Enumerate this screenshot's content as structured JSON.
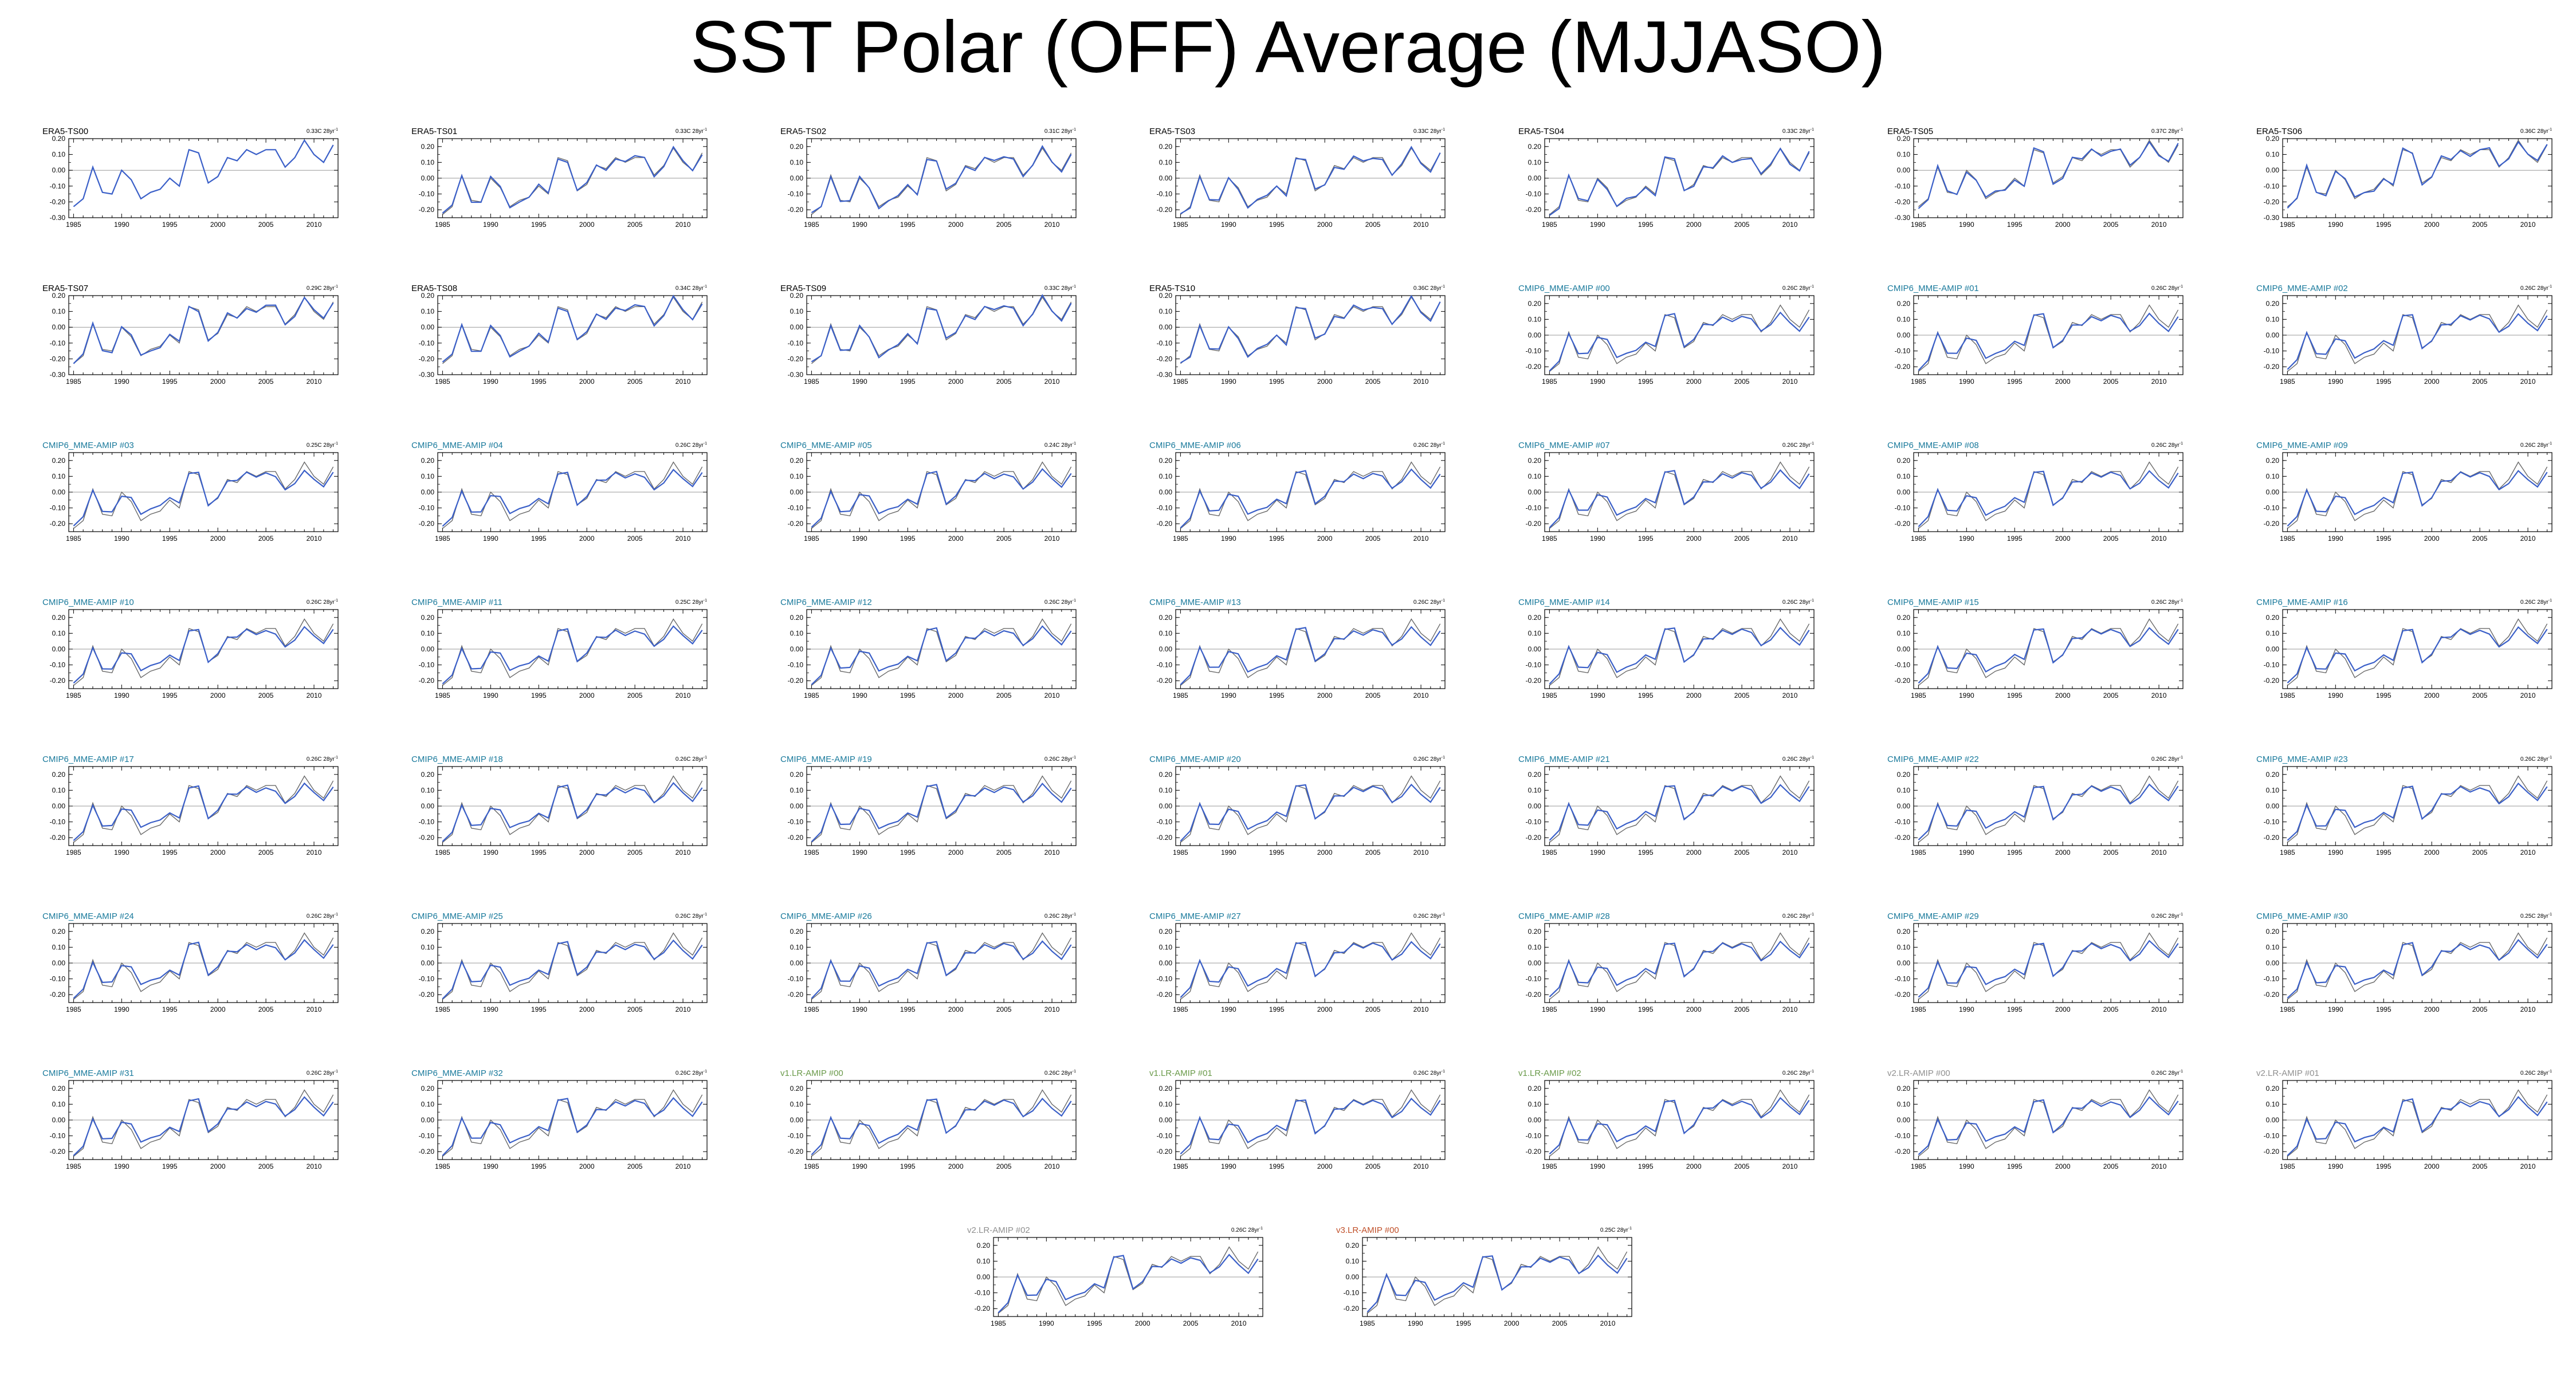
{
  "title": "SST Polar (OFF) Average (MJJASO)",
  "colors": {
    "ts": "#000000",
    "cmip": "#1a7a9c",
    "v1": "#6a9a4a",
    "v2": "#909090",
    "v3": "#c0502a",
    "main_line": "#3a5fc8",
    "ref_line": "#6a6a6a"
  },
  "chart_data": {
    "type": "line",
    "x": [
      1985,
      1986,
      1987,
      1988,
      1989,
      1990,
      1991,
      1992,
      1993,
      1994,
      1995,
      1996,
      1997,
      1998,
      1999,
      2000,
      2001,
      2002,
      2003,
      2004,
      2005,
      2006,
      2007,
      2008,
      2009,
      2010,
      2011,
      2012
    ],
    "xticks": [
      1985,
      1990,
      1995,
      2000,
      2005,
      2010
    ],
    "reference_series": {
      "name": "ERA5-TS00",
      "values": [
        -0.23,
        -0.18,
        0.02,
        -0.14,
        -0.15,
        0.0,
        -0.06,
        -0.18,
        -0.14,
        -0.12,
        -0.05,
        -0.1,
        0.13,
        0.11,
        -0.08,
        -0.04,
        0.08,
        0.06,
        0.13,
        0.1,
        0.13,
        0.13,
        0.02,
        0.08,
        0.19,
        0.1,
        0.05,
        0.16
      ]
    },
    "cmip_series_values": [
      -0.22,
      -0.16,
      0.01,
      -0.12,
      -0.12,
      -0.02,
      -0.03,
      -0.14,
      -0.11,
      -0.09,
      -0.04,
      -0.07,
      0.12,
      0.13,
      -0.08,
      -0.03,
      0.07,
      0.07,
      0.12,
      0.09,
      0.12,
      0.1,
      0.02,
      0.06,
      0.14,
      0.08,
      0.03,
      0.12
    ],
    "panels": [
      {
        "name": "ERA5-TS00",
        "trend": "0.33C 28yr",
        "group": "ts",
        "ylim": [
          -0.3,
          0.2
        ],
        "yticks": [
          "0.20",
          "0.10",
          "0.00",
          "-0.10",
          "-0.20",
          "-0.30"
        ]
      },
      {
        "name": "ERA5-TS01",
        "trend": "0.33C 28yr",
        "group": "ts",
        "ylim": [
          -0.25,
          0.25
        ],
        "yticks": [
          "0.20",
          "0.10",
          "0.00",
          "-0.10",
          "-0.20"
        ]
      },
      {
        "name": "ERA5-TS02",
        "trend": "0.31C 28yr",
        "group": "ts",
        "ylim": [
          -0.25,
          0.25
        ],
        "yticks": [
          "0.20",
          "0.10",
          "0.00",
          "-0.10",
          "-0.20"
        ]
      },
      {
        "name": "ERA5-TS03",
        "trend": "0.33C 28yr",
        "group": "ts",
        "ylim": [
          -0.25,
          0.25
        ],
        "yticks": [
          "0.20",
          "0.10",
          "0.00",
          "-0.10",
          "-0.20"
        ]
      },
      {
        "name": "ERA5-TS04",
        "trend": "0.33C 28yr",
        "group": "ts",
        "ylim": [
          -0.25,
          0.25
        ],
        "yticks": [
          "0.20",
          "0.10",
          "0.00",
          "-0.10",
          "-0.20"
        ]
      },
      {
        "name": "ERA5-TS05",
        "trend": "0.37C 28yr",
        "group": "ts",
        "ylim": [
          -0.3,
          0.2
        ],
        "yticks": [
          "0.20",
          "0.10",
          "0.00",
          "-0.10",
          "-0.20",
          "-0.30"
        ]
      },
      {
        "name": "ERA5-TS06",
        "trend": "0.36C 28yr",
        "group": "ts",
        "ylim": [
          -0.3,
          0.2
        ],
        "yticks": [
          "0.20",
          "0.10",
          "0.00",
          "-0.10",
          "-0.20",
          "-0.30"
        ]
      },
      {
        "name": "ERA5-TS07",
        "trend": "0.29C 28yr",
        "group": "ts",
        "ylim": [
          -0.3,
          0.2
        ],
        "yticks": [
          "0.20",
          "0.10",
          "0.00",
          "-0.10",
          "-0.20",
          "-0.30"
        ]
      },
      {
        "name": "ERA5-TS08",
        "trend": "0.34C 28yr",
        "group": "ts",
        "ylim": [
          -0.3,
          0.2
        ],
        "yticks": [
          "0.20",
          "0.10",
          "0.00",
          "-0.10",
          "-0.20",
          "-0.30"
        ]
      },
      {
        "name": "ERA5-TS09",
        "trend": "0.33C 28yr",
        "group": "ts",
        "ylim": [
          -0.3,
          0.2
        ],
        "yticks": [
          "0.20",
          "0.10",
          "0.00",
          "-0.10",
          "-0.20",
          "-0.30"
        ]
      },
      {
        "name": "ERA5-TS10",
        "trend": "0.36C 28yr",
        "group": "ts",
        "ylim": [
          -0.3,
          0.2
        ],
        "yticks": [
          "0.20",
          "0.10",
          "0.00",
          "-0.10",
          "-0.20",
          "-0.30"
        ]
      },
      {
        "name": "CMIP6_MME-AMIP  #00",
        "trend": "0.26C 28yr",
        "group": "cmip",
        "ylim": [
          -0.25,
          0.25
        ],
        "yticks": [
          "0.20",
          "0.10",
          "0.00",
          "-0.10",
          "-0.20"
        ]
      },
      {
        "name": "CMIP6_MME-AMIP  #01",
        "trend": "0.26C 28yr",
        "group": "cmip",
        "ylim": [
          -0.25,
          0.25
        ],
        "yticks": [
          "0.20",
          "0.10",
          "0.00",
          "-0.10",
          "-0.20"
        ]
      },
      {
        "name": "CMIP6_MME-AMIP  #02",
        "trend": "0.26C 28yr",
        "group": "cmip",
        "ylim": [
          -0.25,
          0.25
        ],
        "yticks": [
          "0.20",
          "0.10",
          "0.00",
          "-0.10",
          "-0.20"
        ]
      },
      {
        "name": "CMIP6_MME-AMIP  #03",
        "trend": "0.25C 28yr",
        "group": "cmip",
        "ylim": [
          -0.25,
          0.25
        ],
        "yticks": [
          "0.20",
          "0.10",
          "0.00",
          "-0.10",
          "-0.20"
        ]
      },
      {
        "name": "CMIP6_MME-AMIP  #04",
        "trend": "0.26C 28yr",
        "group": "cmip",
        "ylim": [
          -0.25,
          0.25
        ],
        "yticks": [
          "0.20",
          "0.10",
          "0.00",
          "-0.10",
          "-0.20"
        ]
      },
      {
        "name": "CMIP6_MME-AMIP  #05",
        "trend": "0.24C 28yr",
        "group": "cmip",
        "ylim": [
          -0.25,
          0.25
        ],
        "yticks": [
          "0.20",
          "0.10",
          "0.00",
          "-0.10",
          "-0.20"
        ]
      },
      {
        "name": "CMIP6_MME-AMIP  #06",
        "trend": "0.26C 28yr",
        "group": "cmip",
        "ylim": [
          -0.25,
          0.25
        ],
        "yticks": [
          "0.20",
          "0.10",
          "0.00",
          "-0.10",
          "-0.20"
        ]
      },
      {
        "name": "CMIP6_MME-AMIP  #07",
        "trend": "0.26C 28yr",
        "group": "cmip",
        "ylim": [
          -0.25,
          0.25
        ],
        "yticks": [
          "0.20",
          "0.10",
          "0.00",
          "-0.10",
          "-0.20"
        ]
      },
      {
        "name": "CMIP6_MME-AMIP  #08",
        "trend": "0.26C 28yr",
        "group": "cmip",
        "ylim": [
          -0.25,
          0.25
        ],
        "yticks": [
          "0.20",
          "0.10",
          "0.00",
          "-0.10",
          "-0.20"
        ]
      },
      {
        "name": "CMIP6_MME-AMIP  #09",
        "trend": "0.26C 28yr",
        "group": "cmip",
        "ylim": [
          -0.25,
          0.25
        ],
        "yticks": [
          "0.20",
          "0.10",
          "0.00",
          "-0.10",
          "-0.20"
        ]
      },
      {
        "name": "CMIP6_MME-AMIP  #10",
        "trend": "0.26C 28yr",
        "group": "cmip",
        "ylim": [
          -0.25,
          0.25
        ],
        "yticks": [
          "0.20",
          "0.10",
          "0.00",
          "-0.10",
          "-0.20"
        ]
      },
      {
        "name": "CMIP6_MME-AMIP  #11",
        "trend": "0.25C 28yr",
        "group": "cmip",
        "ylim": [
          -0.25,
          0.25
        ],
        "yticks": [
          "0.20",
          "0.10",
          "0.00",
          "-0.10",
          "-0.20"
        ]
      },
      {
        "name": "CMIP6_MME-AMIP  #12",
        "trend": "0.26C 28yr",
        "group": "cmip",
        "ylim": [
          -0.25,
          0.25
        ],
        "yticks": [
          "0.20",
          "0.10",
          "0.00",
          "-0.10",
          "-0.20"
        ]
      },
      {
        "name": "CMIP6_MME-AMIP  #13",
        "trend": "0.26C 28yr",
        "group": "cmip",
        "ylim": [
          -0.25,
          0.25
        ],
        "yticks": [
          "0.20",
          "0.10",
          "0.00",
          "-0.10",
          "-0.20"
        ]
      },
      {
        "name": "CMIP6_MME-AMIP  #14",
        "trend": "0.26C 28yr",
        "group": "cmip",
        "ylim": [
          -0.25,
          0.25
        ],
        "yticks": [
          "0.20",
          "0.10",
          "0.00",
          "-0.10",
          "-0.20"
        ]
      },
      {
        "name": "CMIP6_MME-AMIP  #15",
        "trend": "0.26C 28yr",
        "group": "cmip",
        "ylim": [
          -0.25,
          0.25
        ],
        "yticks": [
          "0.20",
          "0.10",
          "0.00",
          "-0.10",
          "-0.20"
        ]
      },
      {
        "name": "CMIP6_MME-AMIP  #16",
        "trend": "0.26C 28yr",
        "group": "cmip",
        "ylim": [
          -0.25,
          0.25
        ],
        "yticks": [
          "0.20",
          "0.10",
          "0.00",
          "-0.10",
          "-0.20"
        ]
      },
      {
        "name": "CMIP6_MME-AMIP  #17",
        "trend": "0.26C 28yr",
        "group": "cmip",
        "ylim": [
          -0.25,
          0.25
        ],
        "yticks": [
          "0.20",
          "0.10",
          "0.00",
          "-0.10",
          "-0.20"
        ]
      },
      {
        "name": "CMIP6_MME-AMIP  #18",
        "trend": "0.26C 28yr",
        "group": "cmip",
        "ylim": [
          -0.25,
          0.25
        ],
        "yticks": [
          "0.20",
          "0.10",
          "0.00",
          "-0.10",
          "-0.20"
        ]
      },
      {
        "name": "CMIP6_MME-AMIP  #19",
        "trend": "0.26C 28yr",
        "group": "cmip",
        "ylim": [
          -0.25,
          0.25
        ],
        "yticks": [
          "0.20",
          "0.10",
          "0.00",
          "-0.10",
          "-0.20"
        ]
      },
      {
        "name": "CMIP6_MME-AMIP  #20",
        "trend": "0.26C 28yr",
        "group": "cmip",
        "ylim": [
          -0.25,
          0.25
        ],
        "yticks": [
          "0.20",
          "0.10",
          "0.00",
          "-0.10",
          "-0.20"
        ]
      },
      {
        "name": "CMIP6_MME-AMIP  #21",
        "trend": "0.26C 28yr",
        "group": "cmip",
        "ylim": [
          -0.25,
          0.25
        ],
        "yticks": [
          "0.20",
          "0.10",
          "0.00",
          "-0.10",
          "-0.20"
        ]
      },
      {
        "name": "CMIP6_MME-AMIP  #22",
        "trend": "0.26C 28yr",
        "group": "cmip",
        "ylim": [
          -0.25,
          0.25
        ],
        "yticks": [
          "0.20",
          "0.10",
          "0.00",
          "-0.10",
          "-0.20"
        ]
      },
      {
        "name": "CMIP6_MME-AMIP  #23",
        "trend": "0.26C 28yr",
        "group": "cmip",
        "ylim": [
          -0.25,
          0.25
        ],
        "yticks": [
          "0.20",
          "0.10",
          "0.00",
          "-0.10",
          "-0.20"
        ]
      },
      {
        "name": "CMIP6_MME-AMIP  #24",
        "trend": "0.26C 28yr",
        "group": "cmip",
        "ylim": [
          -0.25,
          0.25
        ],
        "yticks": [
          "0.20",
          "0.10",
          "0.00",
          "-0.10",
          "-0.20"
        ]
      },
      {
        "name": "CMIP6_MME-AMIP  #25",
        "trend": "0.26C 28yr",
        "group": "cmip",
        "ylim": [
          -0.25,
          0.25
        ],
        "yticks": [
          "0.20",
          "0.10",
          "0.00",
          "-0.10",
          "-0.20"
        ]
      },
      {
        "name": "CMIP6_MME-AMIP  #26",
        "trend": "0.26C 28yr",
        "group": "cmip",
        "ylim": [
          -0.25,
          0.25
        ],
        "yticks": [
          "0.20",
          "0.10",
          "0.00",
          "-0.10",
          "-0.20"
        ]
      },
      {
        "name": "CMIP6_MME-AMIP  #27",
        "trend": "0.26C 28yr",
        "group": "cmip",
        "ylim": [
          -0.25,
          0.25
        ],
        "yticks": [
          "0.20",
          "0.10",
          "0.00",
          "-0.10",
          "-0.20"
        ]
      },
      {
        "name": "CMIP6_MME-AMIP  #28",
        "trend": "0.26C 28yr",
        "group": "cmip",
        "ylim": [
          -0.25,
          0.25
        ],
        "yticks": [
          "0.20",
          "0.10",
          "0.00",
          "-0.10",
          "-0.20"
        ]
      },
      {
        "name": "CMIP6_MME-AMIP  #29",
        "trend": "0.26C 28yr",
        "group": "cmip",
        "ylim": [
          -0.25,
          0.25
        ],
        "yticks": [
          "0.20",
          "0.10",
          "0.00",
          "-0.10",
          "-0.20"
        ]
      },
      {
        "name": "CMIP6_MME-AMIP  #30",
        "trend": "0.25C 28yr",
        "group": "cmip",
        "ylim": [
          -0.25,
          0.25
        ],
        "yticks": [
          "0.20",
          "0.10",
          "0.00",
          "-0.10",
          "-0.20"
        ]
      },
      {
        "name": "CMIP6_MME-AMIP  #31",
        "trend": "0.26C 28yr",
        "group": "cmip",
        "ylim": [
          -0.25,
          0.25
        ],
        "yticks": [
          "0.20",
          "0.10",
          "0.00",
          "-0.10",
          "-0.20"
        ]
      },
      {
        "name": "CMIP6_MME-AMIP  #32",
        "trend": "0.26C 28yr",
        "group": "cmip",
        "ylim": [
          -0.25,
          0.25
        ],
        "yticks": [
          "0.20",
          "0.10",
          "0.00",
          "-0.10",
          "-0.20"
        ]
      },
      {
        "name": "v1.LR-AMIP  #00",
        "trend": "0.26C 28yr",
        "group": "v1",
        "ylim": [
          -0.25,
          0.25
        ],
        "yticks": [
          "0.20",
          "0.10",
          "0.00",
          "-0.10",
          "-0.20"
        ]
      },
      {
        "name": "v1.LR-AMIP  #01",
        "trend": "0.26C 28yr",
        "group": "v1",
        "ylim": [
          -0.25,
          0.25
        ],
        "yticks": [
          "0.20",
          "0.10",
          "0.00",
          "-0.10",
          "-0.20"
        ]
      },
      {
        "name": "v1.LR-AMIP  #02",
        "trend": "0.26C 28yr",
        "group": "v1",
        "ylim": [
          -0.25,
          0.25
        ],
        "yticks": [
          "0.20",
          "0.10",
          "0.00",
          "-0.10",
          "-0.20"
        ]
      },
      {
        "name": "v2.LR-AMIP  #00",
        "trend": "0.26C 28yr",
        "group": "v2",
        "ylim": [
          -0.25,
          0.25
        ],
        "yticks": [
          "0.20",
          "0.10",
          "0.00",
          "-0.10",
          "-0.20"
        ]
      },
      {
        "name": "v2.LR-AMIP  #01",
        "trend": "0.26C 28yr",
        "group": "v2",
        "ylim": [
          -0.25,
          0.25
        ],
        "yticks": [
          "0.20",
          "0.10",
          "0.00",
          "-0.10",
          "-0.20"
        ]
      },
      {
        "name": "v2.LR-AMIP  #02",
        "trend": "0.26C 28yr",
        "group": "v2",
        "ylim": [
          -0.25,
          0.25
        ],
        "yticks": [
          "0.20",
          "0.10",
          "0.00",
          "-0.10",
          "-0.20"
        ]
      },
      {
        "name": "v3.LR-AMIP  #00",
        "trend": "0.25C 28yr",
        "group": "v3",
        "ylim": [
          -0.25,
          0.25
        ],
        "yticks": [
          "0.20",
          "0.10",
          "0.00",
          "-0.10",
          "-0.20"
        ]
      }
    ]
  }
}
